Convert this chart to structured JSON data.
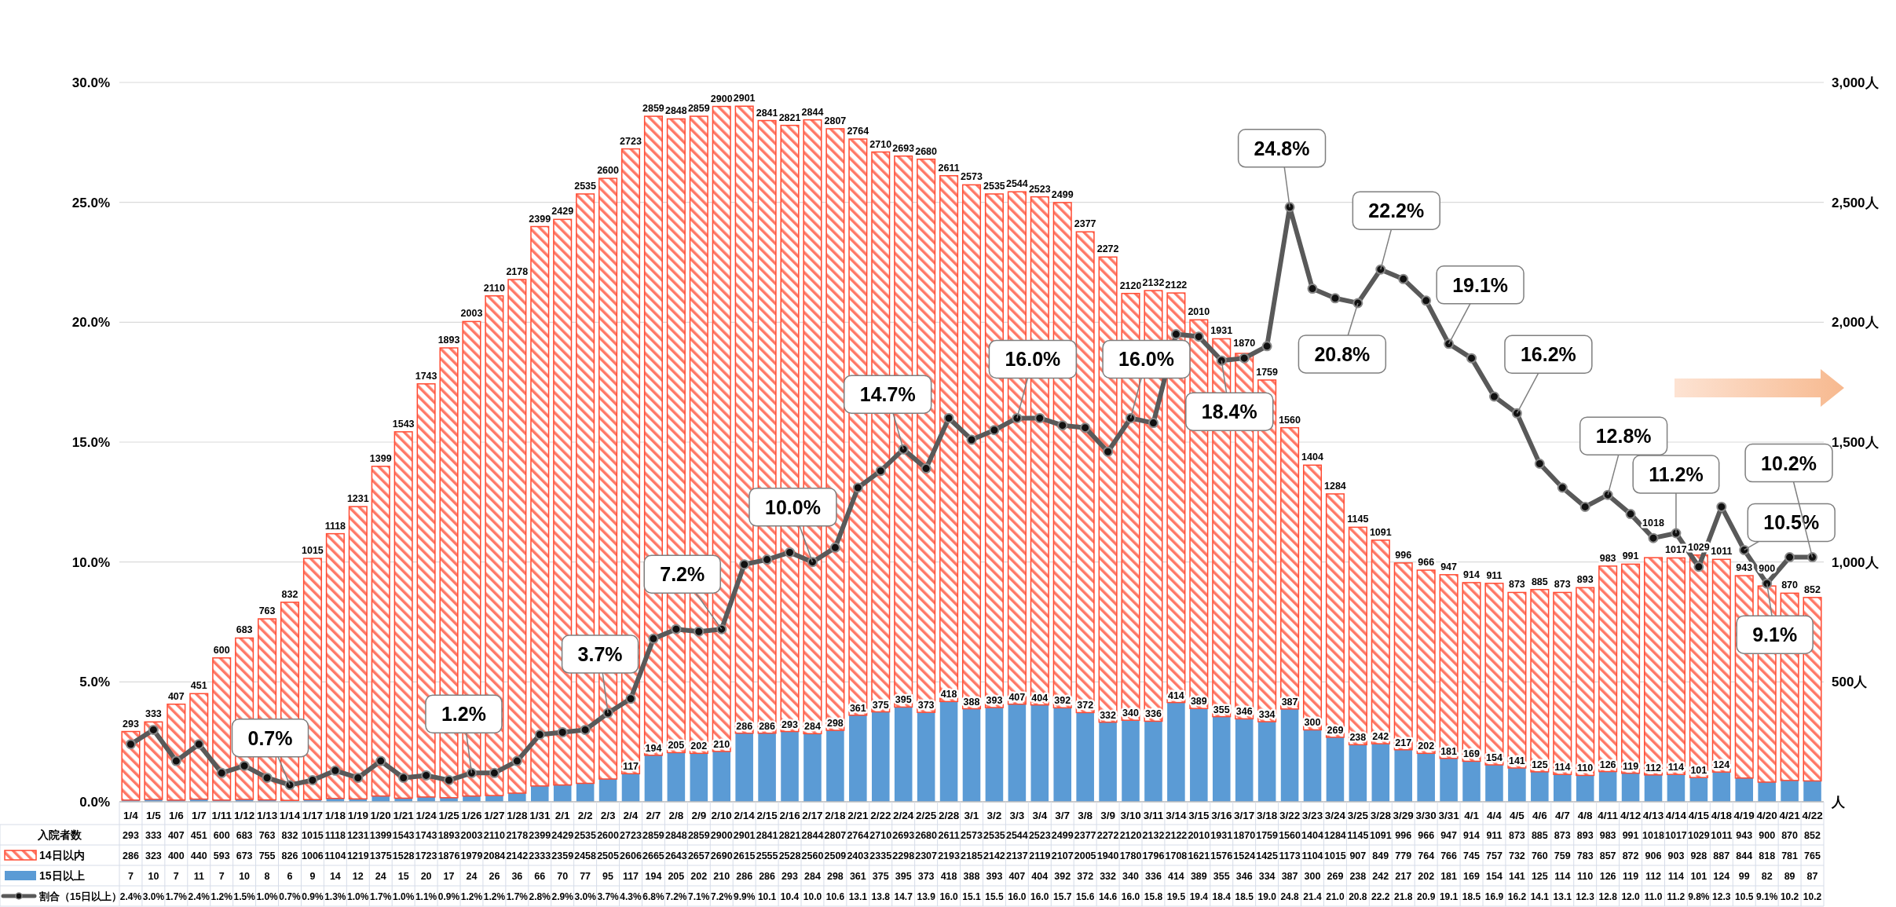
{
  "chart_data": {
    "type": "bar",
    "stacked": true,
    "grid": "y",
    "legend": "bottom left",
    "data_labels": true,
    "categories": [
      "1/4",
      "1/5",
      "1/6",
      "1/7",
      "1/11",
      "1/12",
      "1/13",
      "1/14",
      "1/17",
      "1/18",
      "1/19",
      "1/20",
      "1/21",
      "1/24",
      "1/25",
      "1/26",
      "1/27",
      "1/28",
      "1/31",
      "2/1",
      "2/2",
      "2/3",
      "2/4",
      "2/7",
      "2/8",
      "2/9",
      "2/10",
      "2/14",
      "2/15",
      "2/16",
      "2/17",
      "2/18",
      "2/21",
      "2/22",
      "2/24",
      "2/25",
      "2/28",
      "3/1",
      "3/2",
      "3/3",
      "3/4",
      "3/7",
      "3/8",
      "3/9",
      "3/10",
      "3/11",
      "3/14",
      "3/15",
      "3/16",
      "3/17",
      "3/18",
      "3/22",
      "3/23",
      "3/24",
      "3/25",
      "3/28",
      "3/29",
      "3/30",
      "3/31",
      "4/1",
      "4/4",
      "4/5",
      "4/6",
      "4/7",
      "4/8",
      "4/11",
      "4/12",
      "4/13",
      "4/14",
      "4/15",
      "4/18",
      "4/19",
      "4/20",
      "4/21",
      "4/22"
    ],
    "series": [
      {
        "name": "15日以上",
        "axis": "y2",
        "color": "#5b9bd5",
        "value_labels": [
          "7",
          "10",
          "7",
          "11",
          "7",
          "10",
          "8",
          "6",
          "9",
          "14",
          "12",
          "24",
          "15",
          "20",
          "17",
          "24",
          "26",
          "36",
          "66",
          "70",
          "77",
          "95",
          "117",
          "194",
          "205",
          "202",
          "210",
          "286",
          "286",
          "293",
          "284",
          "298",
          "361",
          "375",
          "395",
          "373",
          "418",
          "388",
          "393",
          "407",
          "404",
          "392",
          "372",
          "332",
          "340",
          "336",
          "414",
          "389",
          "355",
          "346",
          "334",
          "387",
          "300",
          "269",
          "238",
          "242",
          "217",
          "202",
          "181",
          "169",
          "154",
          "141",
          "125",
          "114",
          "110",
          "126",
          "119",
          "112",
          "114",
          "101",
          "124",
          "99",
          "82",
          "89",
          "87"
        ],
        "values": [
          7,
          10,
          7,
          11,
          7,
          10,
          8,
          6,
          9,
          14,
          12,
          24,
          15,
          20,
          17,
          24,
          26,
          36,
          66,
          70,
          77,
          95,
          117,
          194,
          205,
          202,
          210,
          286,
          286,
          293,
          284,
          298,
          361,
          375,
          395,
          373,
          418,
          388,
          393,
          407,
          404,
          392,
          372,
          332,
          340,
          336,
          414,
          389,
          355,
          346,
          334,
          387,
          300,
          269,
          238,
          242,
          217,
          202,
          181,
          169,
          154,
          141,
          125,
          114,
          110,
          126,
          119,
          112,
          114,
          101,
          124,
          99,
          82,
          89,
          87
        ]
      },
      {
        "name": "14日以内",
        "axis": "y2",
        "color": "#ff4b33",
        "values": [
          286,
          323,
          400,
          440,
          593,
          673,
          755,
          826,
          1006,
          1104,
          1219,
          1375,
          1528,
          1723,
          1876,
          1979,
          2084,
          2142,
          2333,
          2359,
          2458,
          2505,
          2606,
          2665,
          2643,
          2657,
          2690,
          2615,
          2555,
          2528,
          2560,
          2509,
          2403,
          2335,
          2298,
          2307,
          2193,
          2185,
          2142,
          2137,
          2119,
          2107,
          2005,
          1940,
          1780,
          1796,
          1708,
          1621,
          1576,
          1524,
          1425,
          1173,
          1104,
          1015,
          907,
          849,
          779,
          764,
          766,
          745,
          757,
          732,
          760,
          759,
          783,
          857,
          872,
          906,
          903,
          928,
          887,
          844,
          818,
          781,
          765
        ]
      },
      {
        "name": "割合（15日以上）",
        "type": "line",
        "marker": "circle",
        "color": "#595959",
        "values": [
          2.4,
          3.0,
          1.7,
          2.4,
          1.2,
          1.5,
          1.0,
          0.7,
          0.9,
          1.3,
          1.0,
          1.7,
          1.0,
          1.1,
          0.9,
          1.2,
          1.2,
          1.7,
          2.8,
          2.9,
          3.0,
          3.7,
          4.3,
          6.8,
          7.2,
          7.1,
          7.2,
          9.9,
          10.1,
          10.4,
          10.0,
          10.6,
          13.1,
          13.8,
          14.7,
          13.9,
          16.0,
          15.1,
          15.5,
          16.0,
          16.0,
          15.7,
          15.6,
          14.6,
          16.0,
          15.8,
          19.5,
          19.4,
          18.4,
          18.5,
          19.0,
          24.8,
          21.4,
          21.0,
          20.8,
          22.2,
          21.8,
          20.9,
          19.1,
          18.5,
          16.9,
          16.2,
          14.1,
          13.1,
          12.3,
          12.8,
          12.0,
          11.0,
          11.2,
          9.8,
          12.3,
          10.5,
          9.1,
          10.2,
          10.2
        ],
        "value_labels": [
          "2.4%",
          "3.0%",
          "1.7%",
          "2.4%",
          "1.2%",
          "1.5%",
          "1.0%",
          "0.7%",
          "0.9%",
          "1.3%",
          "1.0%",
          "1.7%",
          "1.0%",
          "1.1%",
          "0.9%",
          "1.2%",
          "1.2%",
          "1.7%",
          "2.8%",
          "2.9%",
          "3.0%",
          "3.7%",
          "4.3%",
          "6.8%",
          "7.2%",
          "7.1%",
          "7.2%",
          "9.9%",
          "10.1",
          "10.4",
          "10.0",
          "10.6",
          "13.1",
          "13.8",
          "14.7",
          "13.9",
          "16.0",
          "15.1",
          "15.5",
          "16.0",
          "16.0",
          "15.7",
          "15.6",
          "14.6",
          "16.0",
          "15.8",
          "19.5",
          "19.4",
          "18.4",
          "18.5",
          "19.0",
          "24.8",
          "21.4",
          "21.0",
          "20.8",
          "22.2",
          "21.8",
          "20.9",
          "19.1",
          "18.5",
          "16.9",
          "16.2",
          "14.1",
          "13.1",
          "12.3",
          "12.8",
          "12.0",
          "11.0",
          "11.2",
          "9.8%",
          "12.3",
          "10.5",
          "9.1%",
          "10.2",
          "10.2"
        ]
      }
    ],
    "totals": [
      "293",
      "333",
      "407",
      "451",
      "600",
      "683",
      "763",
      "832",
      "1015",
      "1118",
      "1231",
      "1399",
      "1543",
      "1743",
      "1893",
      "2003",
      "2110",
      "2178",
      "2399",
      "2429",
      "2535",
      "2600",
      "2723",
      "2859",
      "2848",
      "2859",
      "2900",
      "2901",
      "2841",
      "2821",
      "2844",
      "2807",
      "2764",
      "2710",
      "2693",
      "2680",
      "2611",
      "2573",
      "2535",
      "2544",
      "2523",
      "2499",
      "2377",
      "2272",
      "2120",
      "2132",
      "2122",
      "2010",
      "1931",
      "1870",
      "1759",
      "1560",
      "1404",
      "1284",
      "1145",
      "1091",
      "996",
      "966",
      "947",
      "914",
      "911",
      "873",
      "885",
      "873",
      "893",
      "983",
      "991",
      "1018",
      "1017",
      "1029",
      "1011",
      "943",
      "900",
      "870",
      "852"
    ],
    "ylim": [
      0,
      30
    ],
    "yticks": [
      {
        "value": 0,
        "label": "0.0%"
      },
      {
        "value": 5,
        "label": "5.0%"
      },
      {
        "value": 10,
        "label": "10.0%"
      },
      {
        "value": 15,
        "label": "15.0%"
      },
      {
        "value": 20,
        "label": "20.0%"
      },
      {
        "value": 25,
        "label": "25.0%"
      },
      {
        "value": 30,
        "label": "30.0%"
      }
    ],
    "y2lim": [
      0,
      3000
    ],
    "y2ticks": [
      {
        "value": 0,
        "label": "人"
      },
      {
        "value": 500,
        "label": "500人"
      },
      {
        "value": 1000,
        "label": "1,000人"
      },
      {
        "value": 1500,
        "label": "1,500人"
      },
      {
        "value": 2000,
        "label": "2,000人"
      },
      {
        "value": 2500,
        "label": "2,500人"
      },
      {
        "value": 3000,
        "label": "3,000人"
      }
    ],
    "annotations": [
      "入院者数",
      {
        "text": "0.7%",
        "x": "1/14",
        "y": 0.7
      },
      {
        "text": "1.2%",
        "x": "1/26",
        "y": 1.2
      },
      {
        "text": "3.7%",
        "x": "2/3",
        "y": 3.7
      },
      {
        "text": "7.2%",
        "x": "2/10",
        "y": 7.2
      },
      {
        "text": "10.0%",
        "x": "2/17",
        "y": 10.0
      },
      {
        "text": "14.7%",
        "x": "2/24",
        "y": 14.7
      },
      {
        "text": "16.0%",
        "x": "3/3",
        "y": 16.0
      },
      {
        "text": "16.0%",
        "x": "3/10",
        "y": 16.0
      },
      {
        "text": "18.4%",
        "x": "3/16",
        "y": 18.4
      },
      {
        "text": "24.8%",
        "x": "3/22",
        "y": 24.8
      },
      {
        "text": "20.8%",
        "x": "3/25",
        "y": 20.8
      },
      {
        "text": "22.2%",
        "x": "3/28",
        "y": 22.2
      },
      {
        "text": "19.1%",
        "x": "3/31",
        "y": 19.1
      },
      {
        "text": "16.2%",
        "x": "4/5",
        "y": 16.2
      },
      {
        "text": "12.8%",
        "x": "4/11",
        "y": 12.8
      },
      {
        "text": "11.2%",
        "x": "4/14",
        "y": 11.2
      },
      {
        "text": "10.5%",
        "x": "4/19",
        "y": 10.5
      },
      {
        "text": "9.1%",
        "x": "4/20",
        "y": 9.1
      },
      {
        "text": "10.2%",
        "x": "4/22",
        "y": 10.2
      }
    ]
  }
}
